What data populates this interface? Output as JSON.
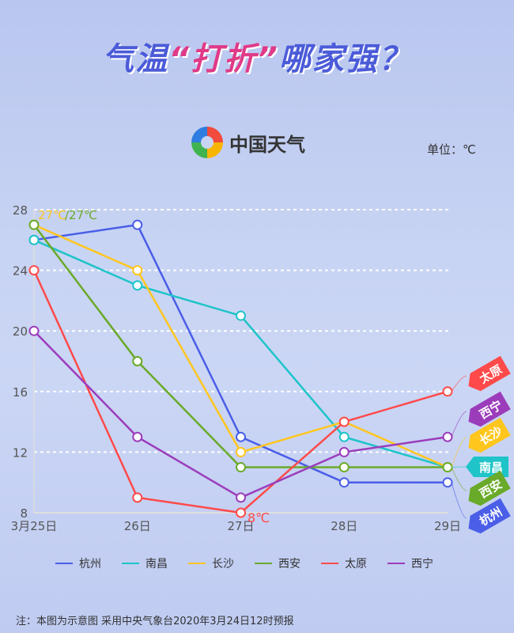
{
  "title": {
    "part1": "气温",
    "part2": "“打折”",
    "part3": "哪家强？"
  },
  "logo": {
    "text": "中国天气"
  },
  "unit": "单位：℃",
  "footer": "注：本图为示意图 采用中央气象台2020年3月24日12时预报",
  "chart_data": {
    "type": "line",
    "categories": [
      "3月25日",
      "26日",
      "27日",
      "28日",
      "29日"
    ],
    "ylim": [
      8,
      28
    ],
    "yticks": [
      8,
      12,
      16,
      20,
      24,
      28
    ],
    "grid": true,
    "legend": "bottom",
    "series": [
      {
        "name": "杭州",
        "color": "#4a5ee8",
        "values": [
          26,
          27,
          13,
          10,
          10
        ]
      },
      {
        "name": "南昌",
        "color": "#1ec4c8",
        "values": [
          26,
          23,
          21,
          13,
          11
        ]
      },
      {
        "name": "长沙",
        "color": "#ffc61e",
        "values": [
          27,
          24,
          12,
          14,
          11
        ]
      },
      {
        "name": "西安",
        "color": "#6aaa2a",
        "values": [
          27,
          18,
          11,
          11,
          11
        ]
      },
      {
        "name": "太原",
        "color": "#ff4a4a",
        "values": [
          24,
          9,
          8,
          14,
          16
        ]
      },
      {
        "name": "西宁",
        "color": "#9b3dbb",
        "values": [
          20,
          13,
          9,
          12,
          13
        ]
      }
    ],
    "annotations": [
      {
        "text": "27℃",
        "color": "#ffc61e"
      },
      {
        "text": "/27℃",
        "color": "#6aaa2a"
      },
      {
        "text": "8℃",
        "color": "#ff4a4a"
      }
    ],
    "end_tags_order": [
      "太原",
      "西宁",
      "长沙",
      "南昌",
      "西安",
      "杭州"
    ]
  }
}
